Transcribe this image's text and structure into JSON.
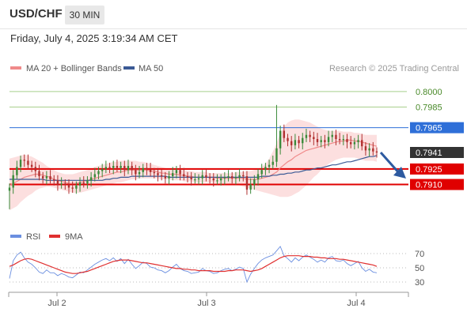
{
  "header": {
    "symbol": "USD/CHF",
    "timeframe": "30 MIN",
    "datetime": "Friday, July 4, 2025 3:19:34 AM CET"
  },
  "legend": {
    "ma20_label": "MA 20 + Bollinger Bands",
    "ma50_label": "MA 50",
    "credit": "Research © 2025 Trading Central"
  },
  "colors": {
    "ma20": "#f08a8a",
    "ma50": "#3b5a95",
    "bollinger_fill": "#fbd9d9",
    "resistance": "#a8d08d",
    "pivot": "#2e6fd8",
    "support": "#e00000",
    "last_price": "#333333",
    "bull_candle": "#3a8a3a",
    "bear_candle": "#b03030",
    "rsi": "#6b8fe0",
    "rsi_ma": "#e03030",
    "arrow": "#2d5aa0"
  },
  "chart_data": [
    {
      "type": "candlestick",
      "x_labels": [
        "Jul 2",
        "Jul 3",
        "Jul 4"
      ],
      "ylim": [
        0.7876,
        0.8006
      ],
      "levels": [
        {
          "value": 0.8,
          "label": "0.8000",
          "kind": "resistance"
        },
        {
          "value": 0.7985,
          "label": "0.7985",
          "kind": "resistance"
        },
        {
          "value": 0.7965,
          "label": "0.7965",
          "kind": "pivot"
        },
        {
          "value": 0.7941,
          "label": "0.7941",
          "kind": "last"
        },
        {
          "value": 0.7925,
          "label": "0.7925",
          "kind": "support"
        },
        {
          "value": 0.791,
          "label": "0.7910",
          "kind": "support"
        }
      ],
      "close": [
        0.7907,
        0.7919,
        0.7927,
        0.7934,
        0.7933,
        0.7929,
        0.7927,
        0.7923,
        0.7918,
        0.7916,
        0.7918,
        0.7915,
        0.7914,
        0.791,
        0.7911,
        0.791,
        0.7907,
        0.7906,
        0.7909,
        0.7912,
        0.7911,
        0.7914,
        0.7917,
        0.792,
        0.7923,
        0.7925,
        0.7927,
        0.7926,
        0.7928,
        0.7926,
        0.7928,
        0.7924,
        0.7928,
        0.7924,
        0.792,
        0.7922,
        0.7926,
        0.7925,
        0.7922,
        0.7921,
        0.7919,
        0.7918,
        0.7916,
        0.7918,
        0.7921,
        0.7924,
        0.792,
        0.7918,
        0.7917,
        0.7915,
        0.7915,
        0.7916,
        0.7919,
        0.7917,
        0.7916,
        0.7914,
        0.7914,
        0.7916,
        0.7917,
        0.7918,
        0.7916,
        0.7917,
        0.7919,
        0.7918,
        0.7905,
        0.791,
        0.7915,
        0.792,
        0.7924,
        0.7927,
        0.7929,
        0.7932,
        0.7945,
        0.7962,
        0.7955,
        0.7952,
        0.7948,
        0.7953,
        0.795,
        0.7955,
        0.7958,
        0.7956,
        0.7954,
        0.7951,
        0.7953,
        0.7951,
        0.7956,
        0.7958,
        0.7954,
        0.7953,
        0.7954,
        0.7951,
        0.7949,
        0.7951,
        0.7953,
        0.7947,
        0.7943,
        0.7945,
        0.7942,
        0.7941
      ],
      "ma20": [
        0.7909,
        0.7911,
        0.7913,
        0.7915,
        0.7917,
        0.7918,
        0.7919,
        0.792,
        0.792,
        0.7919,
        0.7918,
        0.7917,
        0.7915,
        0.7914,
        0.7913,
        0.7912,
        0.7911,
        0.7911,
        0.7911,
        0.7912,
        0.7913,
        0.7914,
        0.7915,
        0.7916,
        0.7917,
        0.7918,
        0.7919,
        0.792,
        0.7921,
        0.7922,
        0.7922,
        0.7923,
        0.7924,
        0.7924,
        0.7924,
        0.7924,
        0.7924,
        0.7924,
        0.7923,
        0.7923,
        0.7922,
        0.7921,
        0.7921,
        0.792,
        0.792,
        0.792,
        0.7919,
        0.7919,
        0.7918,
        0.7918,
        0.7917,
        0.7917,
        0.7917,
        0.7917,
        0.7917,
        0.7917,
        0.7916,
        0.7916,
        0.7916,
        0.7916,
        0.7916,
        0.7916,
        0.7916,
        0.7916,
        0.7915,
        0.7915,
        0.7915,
        0.7915,
        0.7916,
        0.7917,
        0.7918,
        0.792,
        0.7922,
        0.7926,
        0.7929,
        0.7932,
        0.7934,
        0.7937,
        0.7939,
        0.7941,
        0.7943,
        0.7944,
        0.7945,
        0.7946,
        0.7947,
        0.7948,
        0.7949,
        0.795,
        0.7951,
        0.7952,
        0.7952,
        0.7953,
        0.7953,
        0.7952,
        0.7952,
        0.7951,
        0.795,
        0.7949,
        0.7948,
        0.7947
      ],
      "bb_upper": [
        0.7935,
        0.7936,
        0.7937,
        0.7938,
        0.7939,
        0.7938,
        0.7937,
        0.7935,
        0.7933,
        0.7931,
        0.7928,
        0.7926,
        0.7924,
        0.7922,
        0.7921,
        0.792,
        0.792,
        0.792,
        0.7921,
        0.7922,
        0.7923,
        0.7924,
        0.7925,
        0.7927,
        0.7928,
        0.7929,
        0.793,
        0.7931,
        0.7932,
        0.7932,
        0.7933,
        0.7933,
        0.7933,
        0.7933,
        0.7933,
        0.7932,
        0.7932,
        0.7931,
        0.793,
        0.7929,
        0.7928,
        0.7927,
        0.7926,
        0.7925,
        0.7925,
        0.7925,
        0.7924,
        0.7924,
        0.7923,
        0.7923,
        0.7922,
        0.7922,
        0.7922,
        0.7922,
        0.7921,
        0.7921,
        0.7921,
        0.7921,
        0.7921,
        0.7921,
        0.7921,
        0.7922,
        0.7922,
        0.7922,
        0.7923,
        0.7923,
        0.7924,
        0.7925,
        0.7927,
        0.793,
        0.7935,
        0.7942,
        0.795,
        0.796,
        0.7966,
        0.797,
        0.7972,
        0.7973,
        0.7973,
        0.7972,
        0.7971,
        0.797,
        0.7968,
        0.7966,
        0.7964,
        0.7963,
        0.7962,
        0.7962,
        0.7962,
        0.7962,
        0.7961,
        0.7961,
        0.7961,
        0.796,
        0.796,
        0.7959,
        0.7958,
        0.7958,
        0.7958,
        0.7958
      ],
      "bb_lower": [
        0.7885,
        0.7887,
        0.7889,
        0.7893,
        0.7896,
        0.7899,
        0.7901,
        0.7904,
        0.7906,
        0.7907,
        0.7908,
        0.7908,
        0.7907,
        0.7906,
        0.7905,
        0.7904,
        0.7903,
        0.7902,
        0.7902,
        0.7902,
        0.7903,
        0.7904,
        0.7905,
        0.7906,
        0.7907,
        0.7908,
        0.7909,
        0.791,
        0.7911,
        0.7912,
        0.7912,
        0.7913,
        0.7914,
        0.7915,
        0.7915,
        0.7916,
        0.7916,
        0.7916,
        0.7916,
        0.7916,
        0.7916,
        0.7915,
        0.7915,
        0.7915,
        0.7914,
        0.7914,
        0.7914,
        0.7913,
        0.7913,
        0.7913,
        0.7912,
        0.7912,
        0.7912,
        0.7912,
        0.7912,
        0.7912,
        0.7911,
        0.7911,
        0.7911,
        0.7911,
        0.791,
        0.791,
        0.7909,
        0.7908,
        0.7907,
        0.7906,
        0.7905,
        0.7904,
        0.7903,
        0.7902,
        0.7901,
        0.79,
        0.7899,
        0.7898,
        0.7898,
        0.7898,
        0.7899,
        0.7901,
        0.7903,
        0.7906,
        0.7909,
        0.7913,
        0.7917,
        0.792,
        0.7924,
        0.7927,
        0.793,
        0.7932,
        0.7934,
        0.7935,
        0.7936,
        0.7936,
        0.7936,
        0.7936,
        0.7935,
        0.7934,
        0.7933,
        0.7933,
        0.7933,
        0.7932
      ],
      "ma50": [
        0.7915,
        0.7915,
        0.7915,
        0.7915,
        0.7915,
        0.7915,
        0.7915,
        0.7915,
        0.7915,
        0.7915,
        0.7914,
        0.7914,
        0.7914,
        0.7914,
        0.7914,
        0.7914,
        0.7914,
        0.7914,
        0.7914,
        0.7914,
        0.7914,
        0.7914,
        0.7914,
        0.7914,
        0.7914,
        0.7914,
        0.7915,
        0.7915,
        0.7916,
        0.7916,
        0.7917,
        0.7917,
        0.7917,
        0.7918,
        0.7918,
        0.7918,
        0.7918,
        0.7918,
        0.7918,
        0.7918,
        0.7918,
        0.7918,
        0.7918,
        0.7917,
        0.7917,
        0.7917,
        0.7917,
        0.7917,
        0.7917,
        0.7917,
        0.7917,
        0.7917,
        0.7917,
        0.7917,
        0.7917,
        0.7917,
        0.7917,
        0.7917,
        0.7917,
        0.7917,
        0.7917,
        0.7917,
        0.7917,
        0.7917,
        0.7917,
        0.7917,
        0.7917,
        0.7917,
        0.7918,
        0.7918,
        0.7918,
        0.7919,
        0.7919,
        0.792,
        0.792,
        0.7921,
        0.7921,
        0.7922,
        0.7922,
        0.7923,
        0.7924,
        0.7924,
        0.7925,
        0.7926,
        0.7926,
        0.7927,
        0.7928,
        0.7929,
        0.7929,
        0.793,
        0.7931,
        0.7932,
        0.7932,
        0.7933,
        0.7934,
        0.7935,
        0.7936,
        0.7937,
        0.7937,
        0.7938
      ]
    },
    {
      "type": "line",
      "series": [
        {
          "name": "RSI",
          "values": [
            35,
            60,
            68,
            72,
            64,
            58,
            55,
            50,
            44,
            42,
            47,
            43,
            43,
            39,
            42,
            40,
            37,
            36,
            40,
            44,
            43,
            47,
            51,
            55,
            58,
            61,
            63,
            60,
            64,
            59,
            63,
            56,
            62,
            55,
            49,
            53,
            58,
            56,
            51,
            50,
            47,
            46,
            43,
            46,
            51,
            55,
            49,
            46,
            45,
            42,
            43,
            44,
            49,
            46,
            45,
            42,
            43,
            46,
            48,
            49,
            46,
            48,
            51,
            49,
            30,
            41,
            49,
            56,
            61,
            64,
            66,
            68,
            74,
            80,
            67,
            63,
            58,
            64,
            60,
            65,
            68,
            65,
            62,
            58,
            61,
            58,
            64,
            66,
            60,
            59,
            61,
            56,
            53,
            56,
            59,
            50,
            45,
            48,
            44,
            43
          ]
        },
        {
          "name": "9MA",
          "values": [
            52,
            54,
            57,
            60,
            62,
            63,
            62,
            60,
            58,
            56,
            54,
            52,
            50,
            48,
            46,
            44,
            43,
            42,
            42,
            43,
            44,
            45,
            47,
            49,
            51,
            53,
            55,
            57,
            59,
            60,
            61,
            61,
            61,
            60,
            59,
            58,
            57,
            57,
            56,
            55,
            54,
            53,
            52,
            51,
            50,
            49,
            49,
            48,
            48,
            47,
            47,
            46,
            46,
            46,
            46,
            45,
            45,
            45,
            45,
            46,
            46,
            47,
            47,
            47,
            46,
            45,
            46,
            47,
            49,
            52,
            55,
            58,
            61,
            64,
            66,
            67,
            67,
            67,
            67,
            66,
            66,
            66,
            65,
            65,
            64,
            64,
            63,
            63,
            63,
            62,
            62,
            61,
            60,
            59,
            58,
            57,
            56,
            55,
            54,
            52
          ]
        }
      ],
      "levels": [
        70,
        50,
        30
      ],
      "ylim": [
        25,
        82
      ]
    }
  ]
}
